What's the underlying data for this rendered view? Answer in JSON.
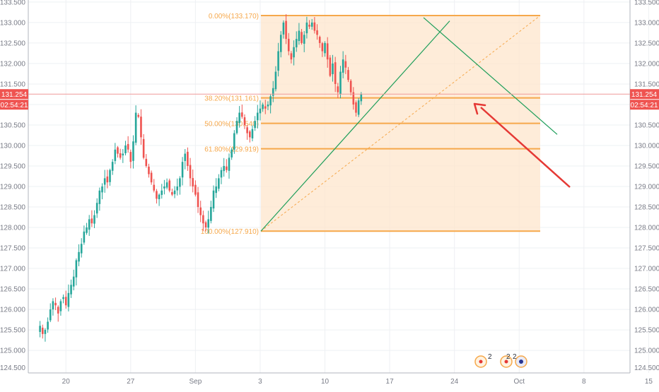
{
  "chart_data": {
    "type": "candlestick",
    "ylim": [
      124.45,
      133.55
    ],
    "y_ticks": [
      "125.000",
      "125.500",
      "126.000",
      "126.500",
      "127.000",
      "127.500",
      "128.000",
      "128.500",
      "129.000",
      "129.500",
      "130.000",
      "130.500",
      "131.000",
      "131.500",
      "132.000",
      "132.500",
      "133.000",
      "133.500"
    ],
    "y_tick_values": [
      125.0,
      125.5,
      126.0,
      126.5,
      127.0,
      127.5,
      128.0,
      128.5,
      129.0,
      129.5,
      130.0,
      130.5,
      131.0,
      131.5,
      132.0,
      132.5,
      133.0,
      133.5
    ],
    "bottom_tick_label": "124.500",
    "x_ticks": [
      {
        "label": "20",
        "index": 10
      },
      {
        "label": "27",
        "index": 35
      },
      {
        "label": "Sep",
        "index": 60
      },
      {
        "label": "3",
        "index": 85
      },
      {
        "label": "10",
        "index": 110
      },
      {
        "label": "17",
        "index": 135
      },
      {
        "label": "24",
        "index": 160
      },
      {
        "label": "Oct",
        "index": 185
      },
      {
        "label": "8",
        "index": 210
      },
      {
        "label": "15",
        "index": 235
      }
    ],
    "price_levels": [
      125.6,
      125.4,
      125.5,
      125.7,
      126.0,
      126.2,
      126.1,
      125.9,
      126.2,
      126.3,
      126.1,
      126.4,
      126.6,
      126.8,
      127.2,
      127.4,
      127.6,
      127.9,
      128.0,
      128.2,
      128.1,
      128.3,
      128.6,
      128.9,
      129.0,
      129.2,
      129.1,
      129.4,
      129.6,
      129.9,
      129.8,
      129.7,
      129.8,
      130.0,
      129.9,
      129.6,
      130.1,
      130.8,
      130.7,
      130.2,
      129.7,
      129.5,
      129.3,
      129.1,
      128.9,
      128.7,
      128.8,
      128.9,
      129.0,
      129.1,
      128.9,
      128.8,
      128.9,
      129.0,
      129.2,
      129.6,
      129.8,
      129.5,
      129.2,
      129.0,
      128.8,
      128.5,
      128.3,
      128.1,
      128.0,
      128.2,
      128.5,
      128.9,
      129.0,
      129.2,
      129.4,
      129.5,
      129.4,
      129.7,
      129.9,
      130.3,
      130.6,
      130.8,
      130.7,
      130.5,
      130.3,
      130.2,
      130.4,
      130.6,
      130.8,
      130.9,
      131.0,
      130.9,
      131.0,
      131.2,
      131.4,
      131.8,
      132.3,
      132.7,
      133.0,
      132.6,
      132.3,
      132.1,
      132.4,
      132.6,
      132.8,
      132.5,
      132.7,
      133.0,
      132.9,
      133.0,
      132.8,
      132.7,
      132.5,
      132.3,
      132.5,
      132.1,
      131.7,
      132.0,
      131.5,
      131.3,
      131.8,
      132.1,
      131.9,
      131.6,
      131.3,
      131.0,
      130.8,
      131.1,
      131.254
    ],
    "candle_start_index": 90,
    "candle_values": [
      128.0,
      128.3,
      128.6,
      128.9,
      129.0,
      129.2,
      129.4,
      129.5,
      129.4,
      129.7,
      129.9,
      130.3,
      130.6,
      130.8,
      130.7,
      130.5,
      130.3,
      130.2,
      130.4,
      130.6,
      130.8,
      130.9,
      131.0,
      130.9,
      131.0,
      131.2,
      131.4,
      131.8,
      132.3,
      132.7,
      133.0,
      132.6,
      132.3,
      132.1,
      132.4,
      132.6,
      132.8,
      132.5,
      132.7,
      133.0,
      132.9,
      133.0,
      132.8,
      132.7,
      132.5,
      132.3,
      132.5,
      132.1,
      131.7,
      132.0,
      131.5,
      131.3,
      131.8,
      132.1,
      131.9,
      131.6,
      131.3,
      131.0,
      130.8,
      131.1,
      131.254
    ],
    "fibonacci": {
      "levels": [
        {
          "label": "0.00%(133.170)",
          "value": 133.17
        },
        {
          "label": "38.20%(131.161)",
          "value": 131.161
        },
        {
          "label": "50.00%(130.540)",
          "value": 130.54
        },
        {
          "label": "61.80%(129.919)",
          "value": 129.919
        },
        {
          "label": "100.00%(127.910)",
          "value": 127.91
        }
      ]
    },
    "current_price": {
      "label": "131.254",
      "value": 131.254
    },
    "countdown": "02:54:21",
    "colors": {
      "up": "#26a69a",
      "down": "#ef5350",
      "fib": "#f6a84b",
      "fib_fill": "#fde5cc",
      "trend": "#1e9e5a",
      "arrow": "#e53935"
    }
  },
  "event_badges": [
    {
      "text": "2"
    },
    {
      "text": "2"
    },
    {
      "text": "2"
    }
  ]
}
